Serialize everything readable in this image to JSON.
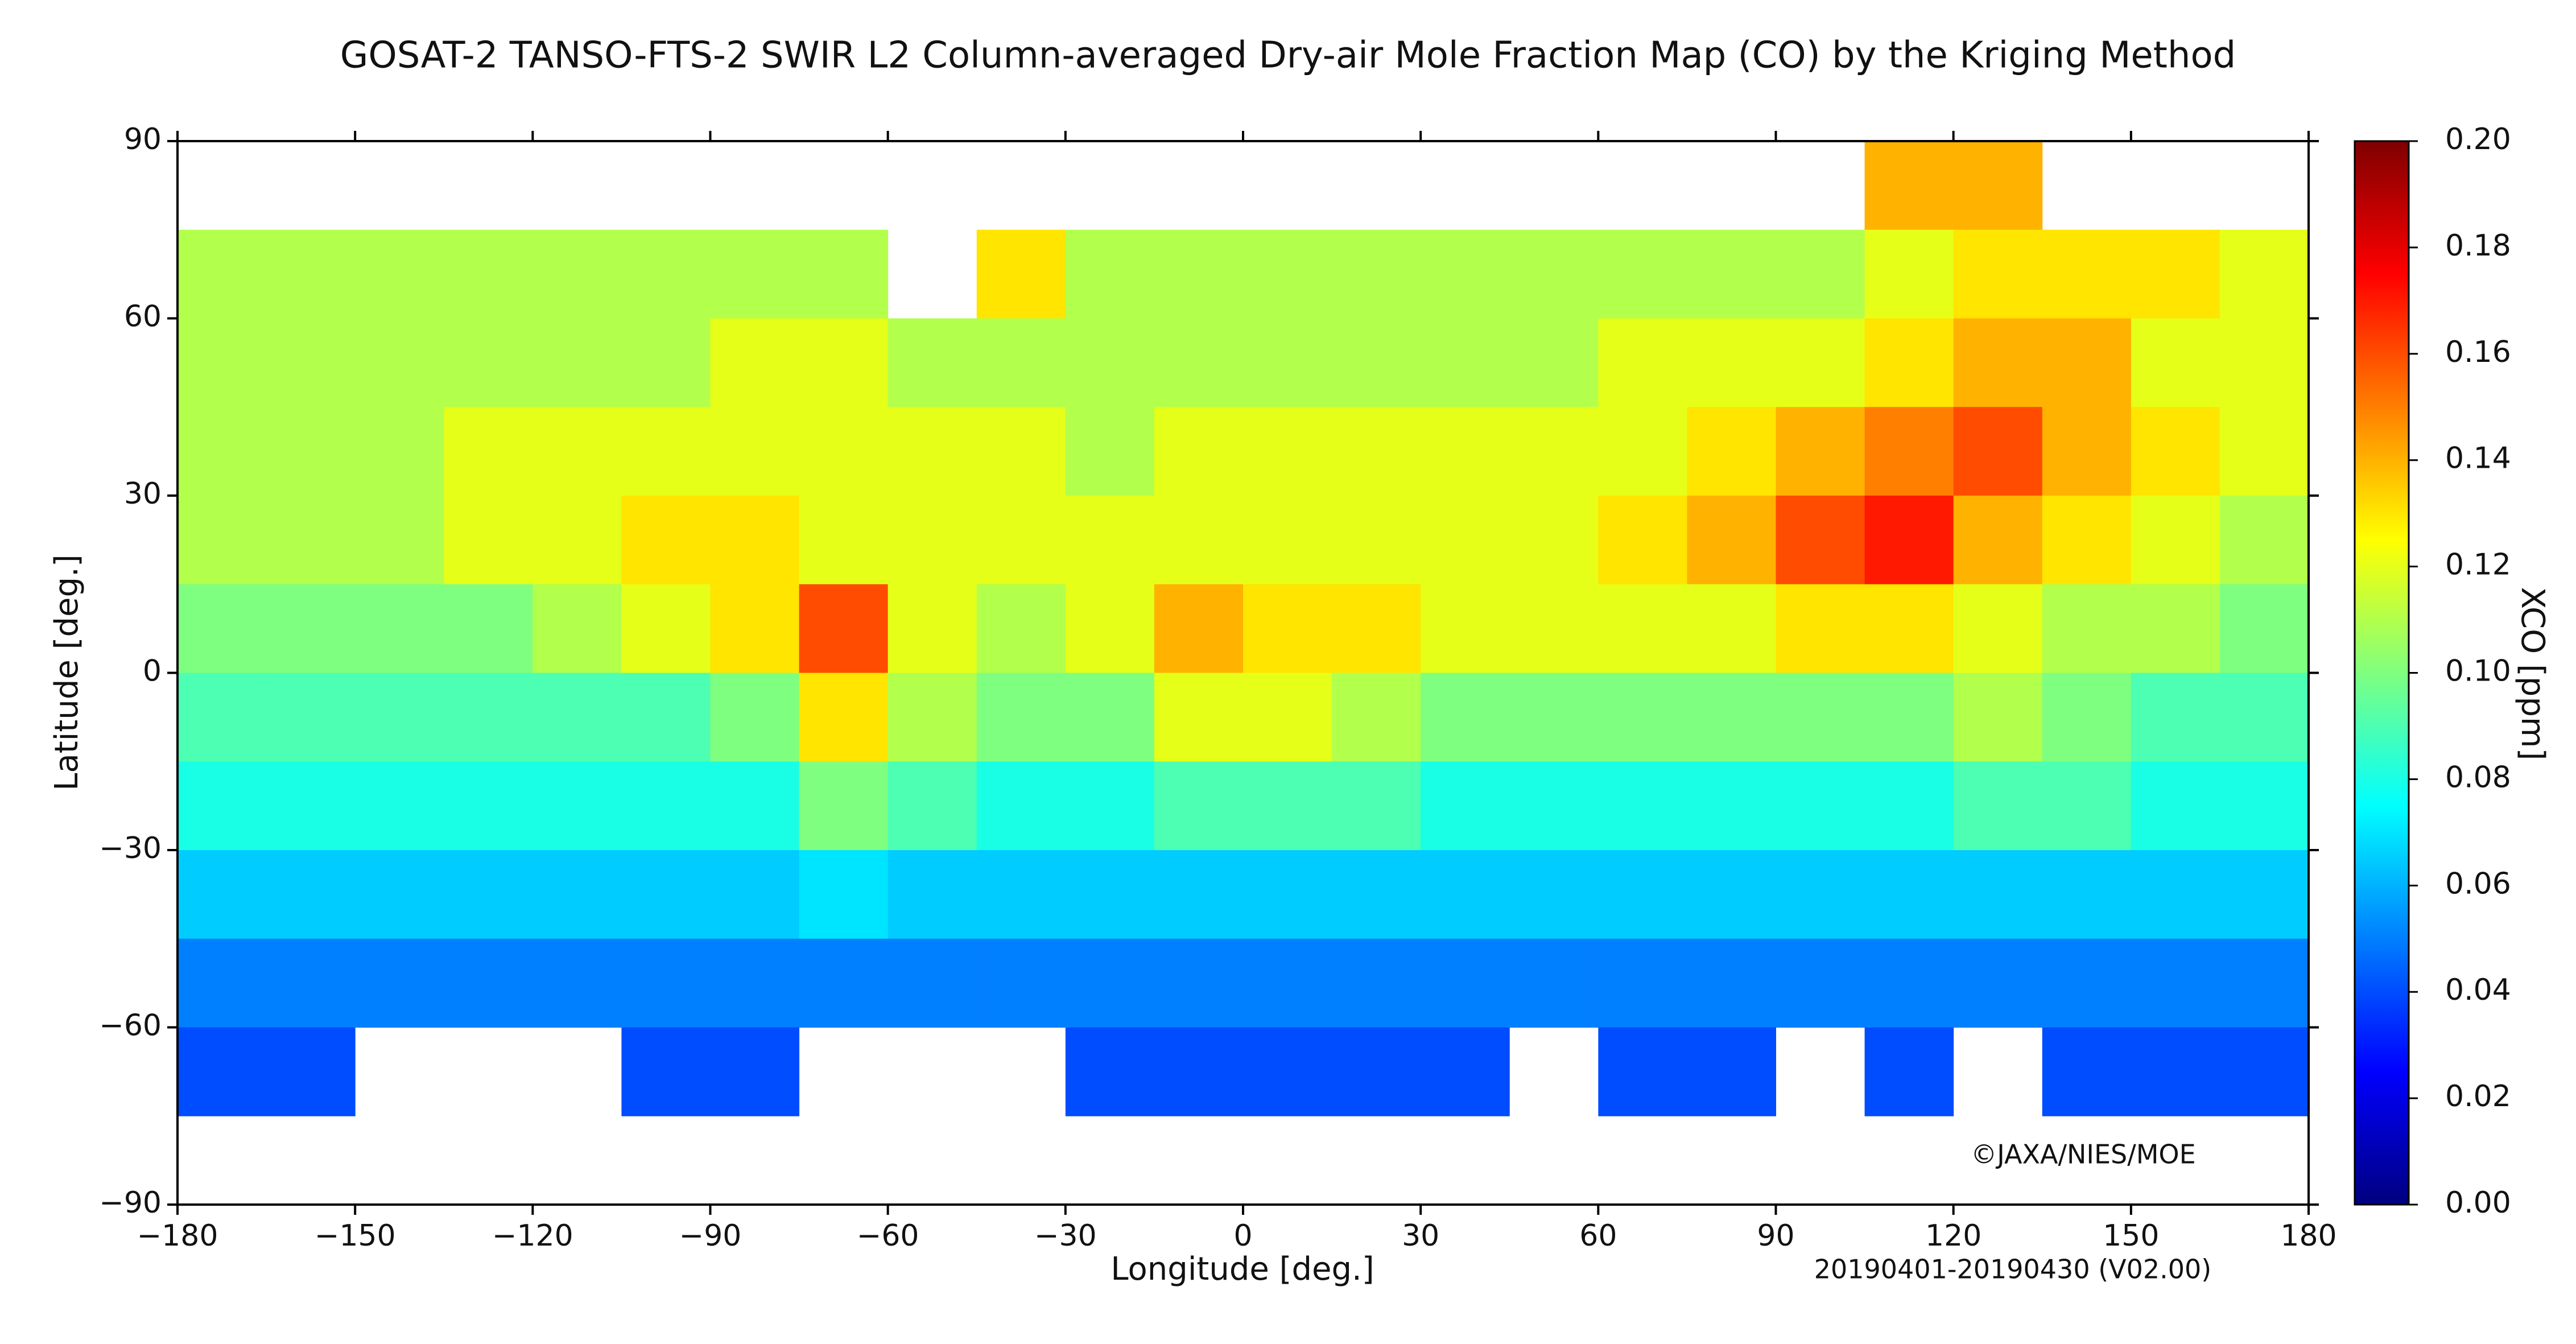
{
  "chart_data": {
    "type": "heatmap",
    "title": "GOSAT-2 TANSO-FTS-2 SWIR L2 Column-averaged Dry-air Mole Fraction Map (CO) by the Kriging Method",
    "xlabel": "Longitude [deg.]",
    "ylabel": "Latitude [deg.]",
    "colorbar_label": "XCO [ppm]",
    "annotation": "©JAXA/NIES/MOE",
    "period": "20190401-20190430 (V02.00)",
    "xlim": [
      -180,
      180
    ],
    "ylim": [
      -90,
      90
    ],
    "xticks": [
      {
        "value": -180,
        "label": "−180"
      },
      {
        "value": -150,
        "label": "−150"
      },
      {
        "value": -120,
        "label": "−120"
      },
      {
        "value": -90,
        "label": "−90"
      },
      {
        "value": -60,
        "label": "−60"
      },
      {
        "value": -30,
        "label": "−30"
      },
      0,
      30,
      60,
      90,
      120,
      150,
      180
    ],
    "yticks": [
      {
        "value": -90,
        "label": "−90"
      },
      {
        "value": -60,
        "label": "−60"
      },
      {
        "value": -30,
        "label": "−30"
      },
      0,
      30,
      60,
      90
    ],
    "clim": [
      0,
      0.2
    ],
    "cticks": [
      {
        "value": 0,
        "label": "0.00"
      },
      {
        "value": 0.02,
        "label": "0.02"
      },
      {
        "value": 0.04,
        "label": "0.04"
      },
      {
        "value": 0.06,
        "label": "0.06"
      },
      {
        "value": 0.08,
        "label": "0.08"
      },
      {
        "value": 0.1,
        "label": "0.10"
      },
      {
        "value": 0.12,
        "label": "0.12"
      },
      {
        "value": 0.14,
        "label": "0.14"
      },
      {
        "value": 0.16,
        "label": "0.16"
      },
      {
        "value": 0.18,
        "label": "0.18"
      },
      {
        "value": 0.2,
        "label": "0.20"
      }
    ],
    "colormap": [
      "#00007f",
      "#0000ff",
      "#007fff",
      "#00ffff",
      "#7fff7f",
      "#ffff00",
      "#ff7f00",
      "#ff0000",
      "#7f0000"
    ],
    "x": [
      -172.5,
      -157.5,
      -142.5,
      -127.5,
      -112.5,
      -97.5,
      -82.5,
      -67.5,
      -52.5,
      -37.5,
      -22.5,
      -7.5,
      7.5,
      22.5,
      37.5,
      52.5,
      67.5,
      82.5,
      97.5,
      112.5,
      127.5,
      142.5,
      157.5,
      172.5
    ],
    "y": [
      82.5,
      67.5,
      52.5,
      37.5,
      22.5,
      7.5,
      -7.5,
      -22.5,
      -37.5,
      -52.5,
      -67.5,
      -82.5
    ],
    "z": [
      [
        null,
        null,
        null,
        null,
        null,
        null,
        null,
        null,
        null,
        null,
        null,
        null,
        null,
        null,
        null,
        null,
        null,
        null,
        null,
        0.14,
        0.14,
        null,
        null,
        null
      ],
      [
        0.11,
        0.11,
        0.11,
        0.11,
        0.11,
        0.11,
        0.11,
        0.11,
        null,
        0.13,
        0.11,
        0.11,
        0.11,
        0.11,
        0.11,
        0.11,
        0.11,
        0.11,
        0.11,
        0.12,
        0.13,
        0.13,
        0.13,
        0.12
      ],
      [
        0.11,
        0.11,
        0.11,
        0.11,
        0.11,
        0.11,
        0.12,
        0.12,
        0.11,
        0.11,
        0.11,
        0.11,
        0.11,
        0.11,
        0.11,
        0.11,
        0.12,
        0.12,
        0.12,
        0.13,
        0.14,
        0.14,
        0.12,
        0.12
      ],
      [
        0.11,
        0.11,
        0.11,
        0.12,
        0.12,
        0.12,
        0.12,
        0.12,
        0.12,
        0.12,
        0.11,
        0.12,
        0.12,
        0.12,
        0.12,
        0.12,
        0.12,
        0.13,
        0.14,
        0.15,
        0.16,
        0.14,
        0.13,
        0.12
      ],
      [
        0.11,
        0.11,
        0.11,
        0.12,
        0.12,
        0.13,
        0.13,
        0.12,
        0.12,
        0.12,
        0.12,
        0.12,
        0.12,
        0.12,
        0.12,
        0.12,
        0.13,
        0.14,
        0.16,
        0.17,
        0.14,
        0.13,
        0.12,
        0.11
      ],
      [
        0.1,
        0.1,
        0.1,
        0.1,
        0.11,
        0.12,
        0.13,
        0.16,
        0.12,
        0.11,
        0.12,
        0.14,
        0.13,
        0.13,
        0.12,
        0.12,
        0.12,
        0.12,
        0.13,
        0.13,
        0.12,
        0.11,
        0.11,
        0.1
      ],
      [
        0.09,
        0.09,
        0.09,
        0.09,
        0.09,
        0.09,
        0.1,
        0.13,
        0.11,
        0.1,
        0.1,
        0.12,
        0.12,
        0.11,
        0.1,
        0.1,
        0.1,
        0.1,
        0.1,
        0.1,
        0.11,
        0.1,
        0.09,
        0.09
      ],
      [
        0.08,
        0.08,
        0.08,
        0.08,
        0.08,
        0.08,
        0.08,
        0.1,
        0.09,
        0.08,
        0.08,
        0.09,
        0.09,
        0.09,
        0.08,
        0.08,
        0.08,
        0.08,
        0.08,
        0.08,
        0.09,
        0.09,
        0.08,
        0.08
      ],
      [
        0.065,
        0.065,
        0.065,
        0.065,
        0.065,
        0.065,
        0.065,
        0.07,
        0.065,
        0.065,
        0.065,
        0.065,
        0.065,
        0.065,
        0.065,
        0.065,
        0.065,
        0.065,
        0.065,
        0.065,
        0.065,
        0.065,
        0.065,
        0.065
      ],
      [
        0.05,
        0.05,
        0.05,
        0.05,
        0.05,
        0.05,
        0.05,
        0.05,
        0.05,
        0.05,
        0.05,
        0.05,
        0.05,
        0.05,
        0.05,
        0.05,
        0.05,
        0.05,
        0.05,
        0.05,
        0.05,
        0.05,
        0.05,
        0.05
      ],
      [
        0.04,
        0.04,
        null,
        null,
        null,
        0.04,
        0.04,
        null,
        null,
        null,
        0.04,
        0.04,
        0.04,
        0.04,
        0.04,
        null,
        0.04,
        0.04,
        null,
        0.04,
        null,
        0.04,
        0.04,
        0.04
      ],
      [
        null,
        null,
        null,
        null,
        null,
        null,
        null,
        null,
        null,
        null,
        null,
        null,
        null,
        null,
        null,
        null,
        null,
        null,
        null,
        null,
        null,
        null,
        null,
        null
      ]
    ]
  }
}
